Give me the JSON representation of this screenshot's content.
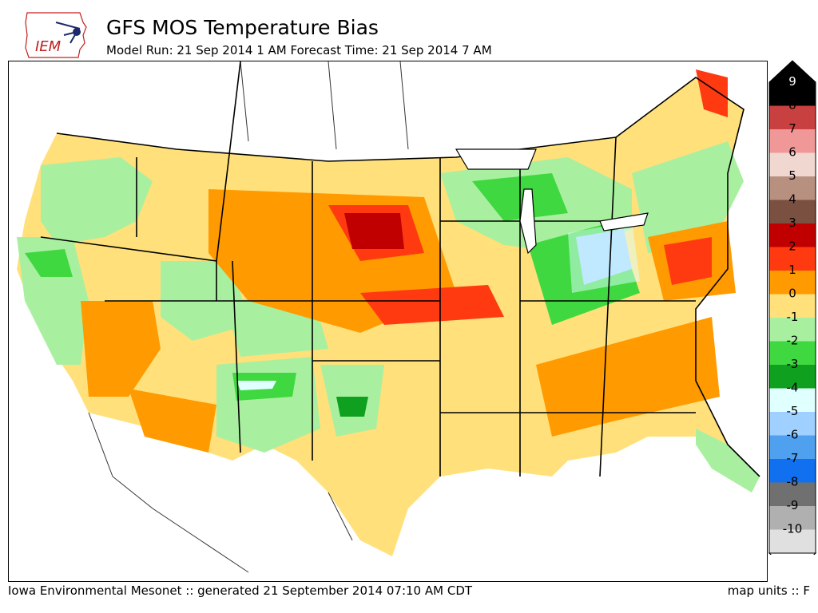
{
  "header": {
    "title": "GFS MOS Temperature Bias",
    "subtitle": "Model Run: 21 Sep 2014 1 AM Forecast Time: 21 Sep 2014 7 AM",
    "logo_text": "IEM"
  },
  "footer": {
    "left": "Iowa Environmental Mesonet :: generated 21 September 2014 07:10 AM CDT",
    "right": "map units :: F"
  },
  "legend": {
    "levels": [
      {
        "label": "9",
        "color": "#000000"
      },
      {
        "label": "8",
        "color": "#c94040"
      },
      {
        "label": "7",
        "color": "#f09898"
      },
      {
        "label": "6",
        "color": "#f0d8d0"
      },
      {
        "label": "5",
        "color": "#b89080"
      },
      {
        "label": "4",
        "color": "#7a5040"
      },
      {
        "label": "3",
        "color": "#c00000"
      },
      {
        "label": "2",
        "color": "#ff3a10"
      },
      {
        "label": "1",
        "color": "#ff9a00"
      },
      {
        "label": "0",
        "color": "#ffe07a"
      },
      {
        "label": "-1",
        "color": "#a8f0a0"
      },
      {
        "label": "-2",
        "color": "#40d840"
      },
      {
        "label": "-3",
        "color": "#10a020"
      },
      {
        "label": "-4",
        "color": "#e0ffff"
      },
      {
        "label": "-5",
        "color": "#a0d0ff"
      },
      {
        "label": "-6",
        "color": "#50a0f0"
      },
      {
        "label": "-7",
        "color": "#1070f0"
      },
      {
        "label": "-8",
        "color": "#707070"
      },
      {
        "label": "-9",
        "color": "#b0b0b0"
      },
      {
        "label": "-10",
        "color": "#e0e0e0"
      }
    ]
  },
  "map": {
    "base_color": "#ffe07a",
    "regions": [
      {
        "name": "pacific-northwest-green",
        "level": "-1"
      },
      {
        "name": "great-lakes-green",
        "level": "-1"
      },
      {
        "name": "ohio-valley-blue",
        "level": "-5"
      },
      {
        "name": "central-plains-red",
        "level": "3"
      },
      {
        "name": "southeast-orange",
        "level": "1"
      },
      {
        "name": "maine-red",
        "level": "3"
      }
    ]
  }
}
